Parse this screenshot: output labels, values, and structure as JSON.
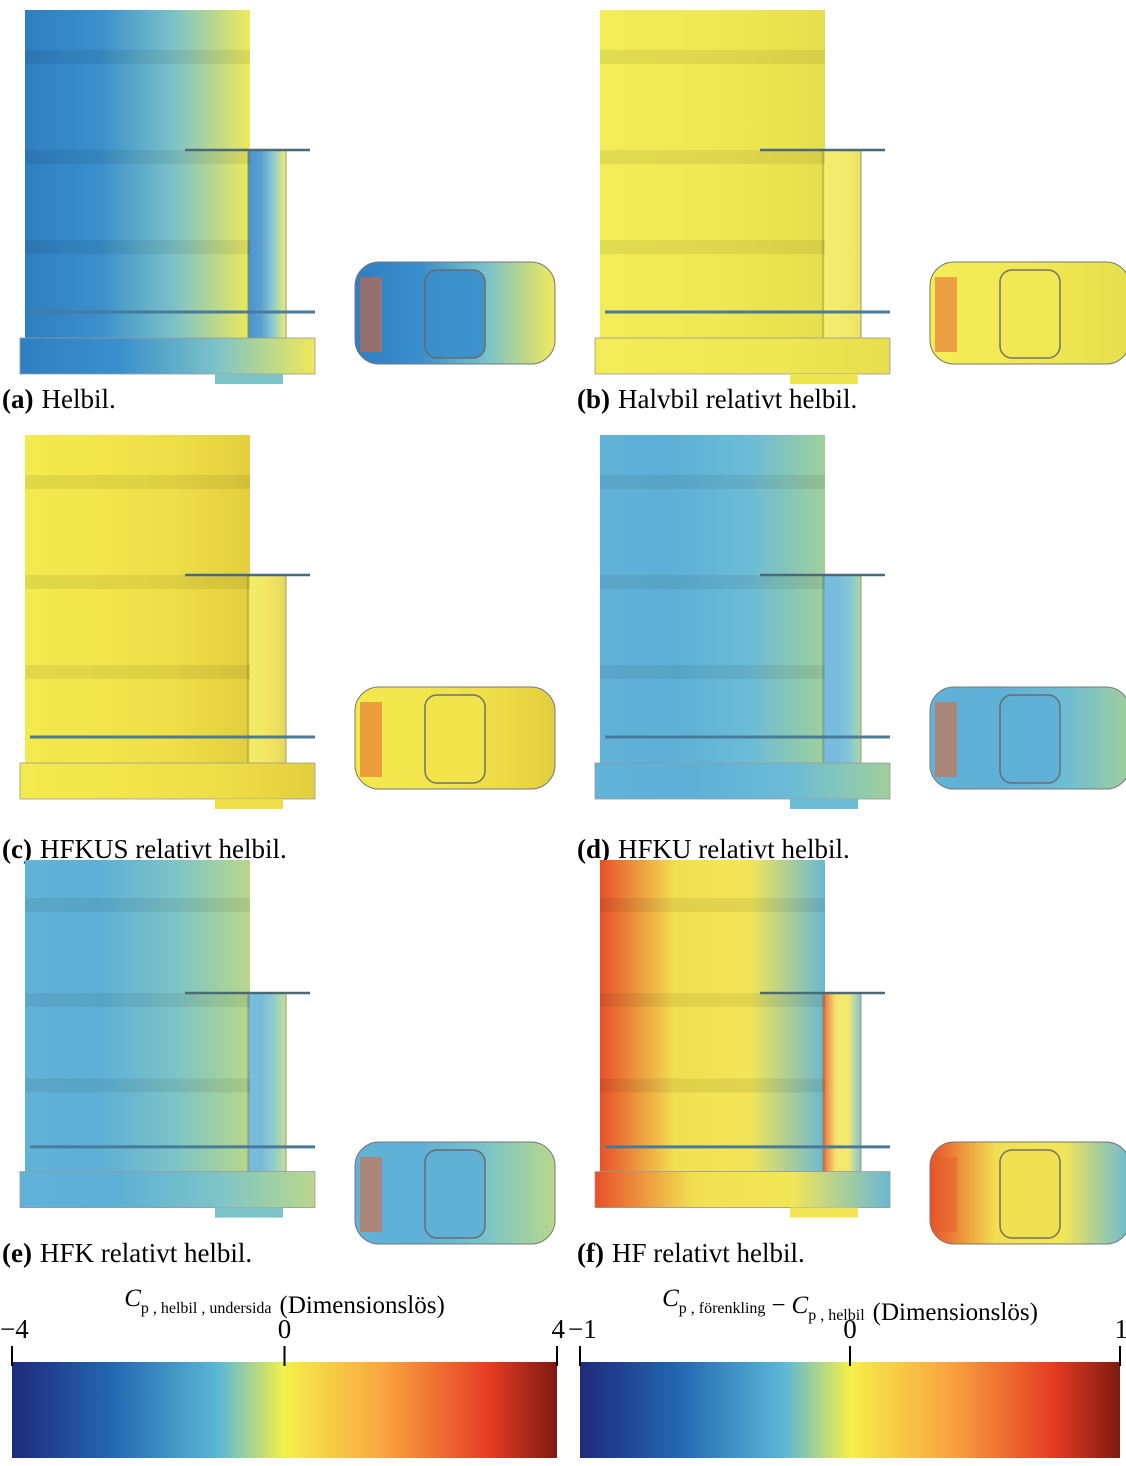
{
  "panels": [
    {
      "label": "(a)",
      "caption": "Helbil."
    },
    {
      "label": "(b)",
      "caption": "Halvbil relativt helbil."
    },
    {
      "label": "(c)",
      "caption": "HFKUS relativt helbil."
    },
    {
      "label": "(d)",
      "caption": "HFKU relativt helbil."
    },
    {
      "label": "(e)",
      "caption": "HFK relativt helbil."
    },
    {
      "label": "(f)",
      "caption": "HF relativt helbil."
    }
  ],
  "colorbars": [
    {
      "terms": [
        {
          "symbol": "C",
          "subscript": "p , helbil , undersida"
        }
      ],
      "unit": "(Dimensionslös)",
      "lim": [
        -4,
        4
      ],
      "ticks": [
        {
          "value": -4,
          "label": "−4"
        },
        0,
        4
      ]
    },
    {
      "terms": [
        {
          "symbol": "C",
          "subscript": "p , förenkling"
        },
        {
          "symbol": "C",
          "subscript": "p , helbil"
        }
      ],
      "operator": "−",
      "unit": "(Dimensionslös)",
      "lim": [
        -1,
        1
      ],
      "ticks": [
        {
          "value": -1,
          "label": "−1"
        },
        0,
        1
      ]
    }
  ]
}
